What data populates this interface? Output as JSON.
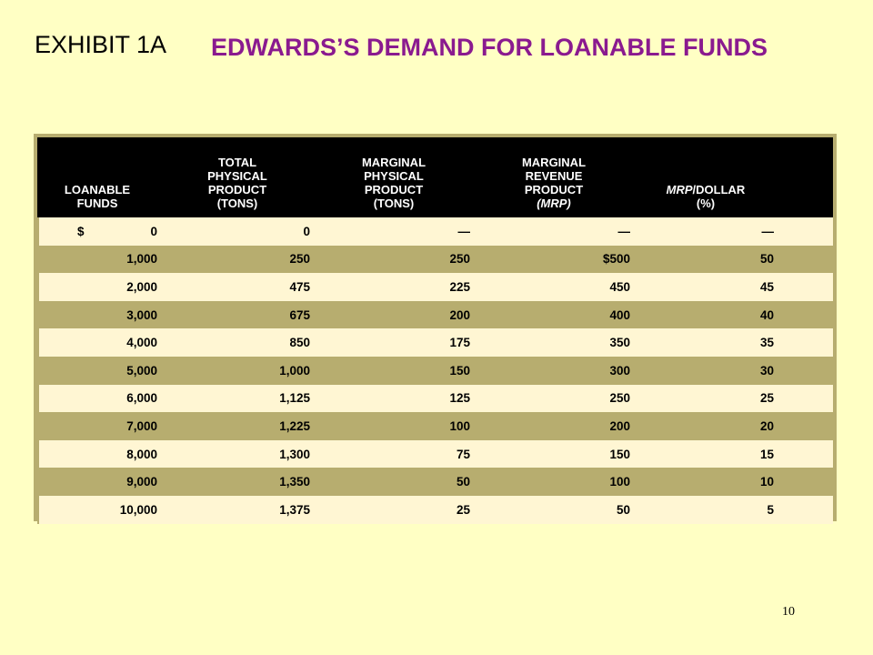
{
  "slide": {
    "exhibit_label": "EXHIBIT 1A",
    "title": "EDWARDS’S DEMAND FOR LOANABLE FUNDS",
    "page_number": "10"
  },
  "table": {
    "headers": [
      {
        "line1": "",
        "line2": "",
        "line3": "LOANABLE",
        "line4": "FUNDS"
      },
      {
        "line1": "TOTAL",
        "line2": "PHYSICAL",
        "line3": "PRODUCT",
        "line4": "(TONS)"
      },
      {
        "line1": "MARGINAL",
        "line2": "PHYSICAL",
        "line3": "PRODUCT",
        "line4": "(TONS)"
      },
      {
        "line1": "MARGINAL",
        "line2": "REVENUE",
        "line3": "PRODUCT",
        "line4": "(MRP)"
      },
      {
        "line1": "",
        "line2": "",
        "line3_italic": "MRP",
        "line3_rest": "/DOLLAR",
        "line4": "(%)"
      }
    ],
    "rows": [
      {
        "funds_symbol": "$",
        "funds": "0",
        "tpp": "0",
        "mpp": "—",
        "mrp": "—",
        "mrp_dollar": "—"
      },
      {
        "funds_symbol": "",
        "funds": "1,000",
        "tpp": "250",
        "mpp": "250",
        "mrp": "$500",
        "mrp_dollar": "50"
      },
      {
        "funds_symbol": "",
        "funds": "2,000",
        "tpp": "475",
        "mpp": "225",
        "mrp": "450",
        "mrp_dollar": "45"
      },
      {
        "funds_symbol": "",
        "funds": "3,000",
        "tpp": "675",
        "mpp": "200",
        "mrp": "400",
        "mrp_dollar": "40"
      },
      {
        "funds_symbol": "",
        "funds": "4,000",
        "tpp": "850",
        "mpp": "175",
        "mrp": "350",
        "mrp_dollar": "35"
      },
      {
        "funds_symbol": "",
        "funds": "5,000",
        "tpp": "1,000",
        "mpp": "150",
        "mrp": "300",
        "mrp_dollar": "30"
      },
      {
        "funds_symbol": "",
        "funds": "6,000",
        "tpp": "1,125",
        "mpp": "125",
        "mrp": "250",
        "mrp_dollar": "25"
      },
      {
        "funds_symbol": "",
        "funds": "7,000",
        "tpp": "1,225",
        "mpp": "100",
        "mrp": "200",
        "mrp_dollar": "20"
      },
      {
        "funds_symbol": "",
        "funds": "8,000",
        "tpp": "1,300",
        "mpp": "75",
        "mrp": "150",
        "mrp_dollar": "15"
      },
      {
        "funds_symbol": "",
        "funds": "9,000",
        "tpp": "1,350",
        "mpp": "50",
        "mrp": "100",
        "mrp_dollar": "10"
      },
      {
        "funds_symbol": "",
        "funds": "10,000",
        "tpp": "1,375",
        "mpp": "25",
        "mrp": "50",
        "mrp_dollar": "5"
      }
    ]
  },
  "colors": {
    "background": "#ffffc4",
    "title_purple": "#8a1a8f",
    "header_black": "#000000",
    "row_light": "#fff6d3",
    "row_dark": "#b7ad6f"
  }
}
